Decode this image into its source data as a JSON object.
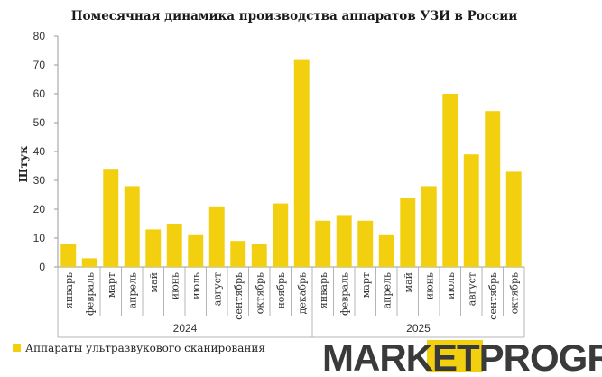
{
  "chart_data": {
    "type": "bar",
    "title": "Помесячная динамика производства аппаратов УЗИ в России",
    "ylabel": "Штук",
    "xlabel": "",
    "ylim": [
      0,
      80
    ],
    "yticks": [
      0,
      10,
      20,
      30,
      40,
      50,
      60,
      70,
      80
    ],
    "grid": false,
    "legend_position": "bottom-left",
    "categories": [
      "январь",
      "февраль",
      "март",
      "апрель",
      "май",
      "июнь",
      "июль",
      "август",
      "сентябрь",
      "октябрь",
      "ноябрь",
      "декабрь",
      "январь",
      "февраль",
      "март",
      "апрель",
      "май",
      "июнь",
      "июль",
      "август",
      "сентябрь",
      "октябрь"
    ],
    "groups": [
      {
        "label": "2024",
        "start": 0,
        "end": 11
      },
      {
        "label": "2025",
        "start": 12,
        "end": 21
      }
    ],
    "series": [
      {
        "name": "Аппараты ультразвукового сканирования",
        "color": "#f2d00f",
        "values": [
          8,
          3,
          34,
          28,
          13,
          15,
          11,
          21,
          9,
          8,
          22,
          72,
          16,
          18,
          16,
          11,
          24,
          28,
          60,
          39,
          54,
          33
        ]
      }
    ]
  },
  "logo": {
    "part1": "MARKET",
    "part2": "PRO",
    "part3": "GROUP",
    "dark_color": "#3a3a3a",
    "accent_color": "#f2d00f"
  }
}
